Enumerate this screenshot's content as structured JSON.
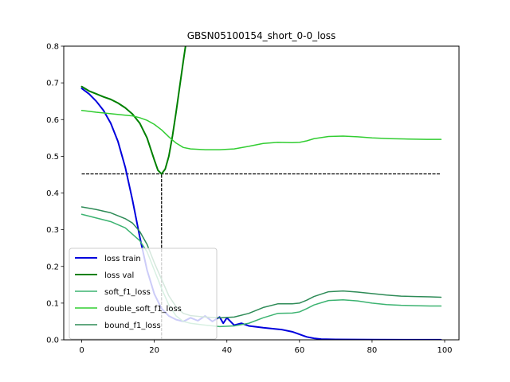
{
  "chart_data": {
    "type": "line",
    "title": "GBSN05100154_short_0-0_loss",
    "xlabel": "",
    "ylabel": "",
    "xlim": [
      -4.95,
      103.95
    ],
    "ylim": [
      0.0,
      0.8
    ],
    "xticks": [
      0,
      20,
      40,
      60,
      80,
      100
    ],
    "yticks": [
      0.0,
      0.1,
      0.2,
      0.3,
      0.4,
      0.5,
      0.6,
      0.7,
      0.8
    ],
    "xtick_labels": [
      "0",
      "20",
      "40",
      "60",
      "80",
      "100"
    ],
    "ytick_labels": [
      "0.0",
      "0.1",
      "0.2",
      "0.3",
      "0.4",
      "0.5",
      "0.6",
      "0.7",
      "0.8"
    ],
    "grid": false,
    "legend_position": "lower-left",
    "series": [
      {
        "name": "loss train",
        "color": "#0000dd",
        "linewidth": "thick",
        "points": [
          [
            0,
            0.685
          ],
          [
            2,
            0.67
          ],
          [
            4,
            0.65
          ],
          [
            6,
            0.625
          ],
          [
            8,
            0.59
          ],
          [
            10,
            0.54
          ],
          [
            12,
            0.47
          ],
          [
            14,
            0.38
          ],
          [
            16,
            0.28
          ],
          [
            18,
            0.19
          ],
          [
            20,
            0.125
          ],
          [
            22,
            0.085
          ],
          [
            24,
            0.065
          ],
          [
            26,
            0.055
          ],
          [
            28,
            0.05
          ],
          [
            30,
            0.06
          ],
          [
            32,
            0.052
          ],
          [
            34,
            0.065
          ],
          [
            36,
            0.05
          ],
          [
            38,
            0.062
          ],
          [
            39,
            0.045
          ],
          [
            40,
            0.06
          ],
          [
            42,
            0.04
          ],
          [
            44,
            0.045
          ],
          [
            46,
            0.038
          ],
          [
            50,
            0.033
          ],
          [
            55,
            0.028
          ],
          [
            58,
            0.022
          ],
          [
            60,
            0.015
          ],
          [
            62,
            0.008
          ],
          [
            64,
            0.004
          ],
          [
            66,
            0.002
          ],
          [
            70,
            0.001
          ],
          [
            80,
            0.0005
          ],
          [
            90,
            0.0003
          ],
          [
            99,
            0.0002
          ]
        ]
      },
      {
        "name": "loss val",
        "color": "#008000",
        "linewidth": "thick",
        "points": [
          [
            0,
            0.69
          ],
          [
            2,
            0.678
          ],
          [
            4,
            0.67
          ],
          [
            6,
            0.662
          ],
          [
            8,
            0.655
          ],
          [
            10,
            0.645
          ],
          [
            12,
            0.632
          ],
          [
            14,
            0.615
          ],
          [
            16,
            0.59
          ],
          [
            18,
            0.55
          ],
          [
            20,
            0.49
          ],
          [
            21,
            0.462
          ],
          [
            22,
            0.452
          ],
          [
            23,
            0.465
          ],
          [
            24,
            0.5
          ],
          [
            25,
            0.555
          ],
          [
            26,
            0.62
          ],
          [
            27,
            0.69
          ],
          [
            28,
            0.76
          ],
          [
            28.6,
            0.8
          ],
          [
            29,
            0.83
          ]
        ]
      },
      {
        "name": "soft_f1_loss",
        "color": "#3cb371",
        "linewidth": "normal",
        "points": [
          [
            0,
            0.342
          ],
          [
            4,
            0.332
          ],
          [
            8,
            0.322
          ],
          [
            12,
            0.305
          ],
          [
            16,
            0.27
          ],
          [
            18,
            0.24
          ],
          [
            20,
            0.19
          ],
          [
            22,
            0.14
          ],
          [
            24,
            0.095
          ],
          [
            26,
            0.065
          ],
          [
            28,
            0.05
          ],
          [
            30,
            0.045
          ],
          [
            34,
            0.04
          ],
          [
            38,
            0.036
          ],
          [
            42,
            0.038
          ],
          [
            46,
            0.045
          ],
          [
            50,
            0.06
          ],
          [
            54,
            0.072
          ],
          [
            58,
            0.073
          ],
          [
            60,
            0.076
          ],
          [
            62,
            0.085
          ],
          [
            64,
            0.095
          ],
          [
            68,
            0.107
          ],
          [
            72,
            0.109
          ],
          [
            76,
            0.106
          ],
          [
            80,
            0.1
          ],
          [
            84,
            0.096
          ],
          [
            88,
            0.094
          ],
          [
            92,
            0.093
          ],
          [
            96,
            0.092
          ],
          [
            99,
            0.092
          ]
        ]
      },
      {
        "name": "double_soft_f1_loss",
        "color": "#32cd32",
        "linewidth": "normal",
        "points": [
          [
            0,
            0.625
          ],
          [
            4,
            0.62
          ],
          [
            8,
            0.616
          ],
          [
            12,
            0.612
          ],
          [
            14,
            0.61
          ],
          [
            16,
            0.605
          ],
          [
            18,
            0.598
          ],
          [
            20,
            0.587
          ],
          [
            22,
            0.572
          ],
          [
            24,
            0.553
          ],
          [
            26,
            0.536
          ],
          [
            28,
            0.524
          ],
          [
            30,
            0.52
          ],
          [
            34,
            0.518
          ],
          [
            38,
            0.518
          ],
          [
            42,
            0.52
          ],
          [
            46,
            0.527
          ],
          [
            50,
            0.535
          ],
          [
            54,
            0.538
          ],
          [
            58,
            0.537
          ],
          [
            60,
            0.538
          ],
          [
            62,
            0.542
          ],
          [
            64,
            0.548
          ],
          [
            68,
            0.554
          ],
          [
            72,
            0.555
          ],
          [
            76,
            0.553
          ],
          [
            80,
            0.55
          ],
          [
            85,
            0.548
          ],
          [
            90,
            0.547
          ],
          [
            95,
            0.546
          ],
          [
            99,
            0.546
          ]
        ]
      },
      {
        "name": "bound_f1_loss",
        "color": "#2e8b57",
        "linewidth": "normal",
        "points": [
          [
            0,
            0.362
          ],
          [
            4,
            0.355
          ],
          [
            8,
            0.346
          ],
          [
            12,
            0.33
          ],
          [
            14,
            0.318
          ],
          [
            16,
            0.295
          ],
          [
            18,
            0.26
          ],
          [
            20,
            0.21
          ],
          [
            22,
            0.165
          ],
          [
            24,
            0.12
          ],
          [
            26,
            0.09
          ],
          [
            28,
            0.072
          ],
          [
            30,
            0.066
          ],
          [
            34,
            0.062
          ],
          [
            38,
            0.06
          ],
          [
            42,
            0.062
          ],
          [
            46,
            0.072
          ],
          [
            50,
            0.088
          ],
          [
            54,
            0.098
          ],
          [
            58,
            0.098
          ],
          [
            60,
            0.1
          ],
          [
            62,
            0.108
          ],
          [
            64,
            0.118
          ],
          [
            68,
            0.131
          ],
          [
            72,
            0.133
          ],
          [
            76,
            0.13
          ],
          [
            80,
            0.126
          ],
          [
            84,
            0.122
          ],
          [
            88,
            0.119
          ],
          [
            92,
            0.118
          ],
          [
            96,
            0.117
          ],
          [
            99,
            0.116
          ]
        ]
      }
    ],
    "reference_lines": [
      {
        "kind": "horizontal",
        "y": 0.452,
        "x_from": 0,
        "x_to": 99,
        "color": "#000000",
        "style": "dashed"
      },
      {
        "kind": "vertical",
        "x": 22,
        "y_from": 0.0,
        "y_to": 0.452,
        "color": "#000000",
        "style": "dashed"
      }
    ]
  }
}
